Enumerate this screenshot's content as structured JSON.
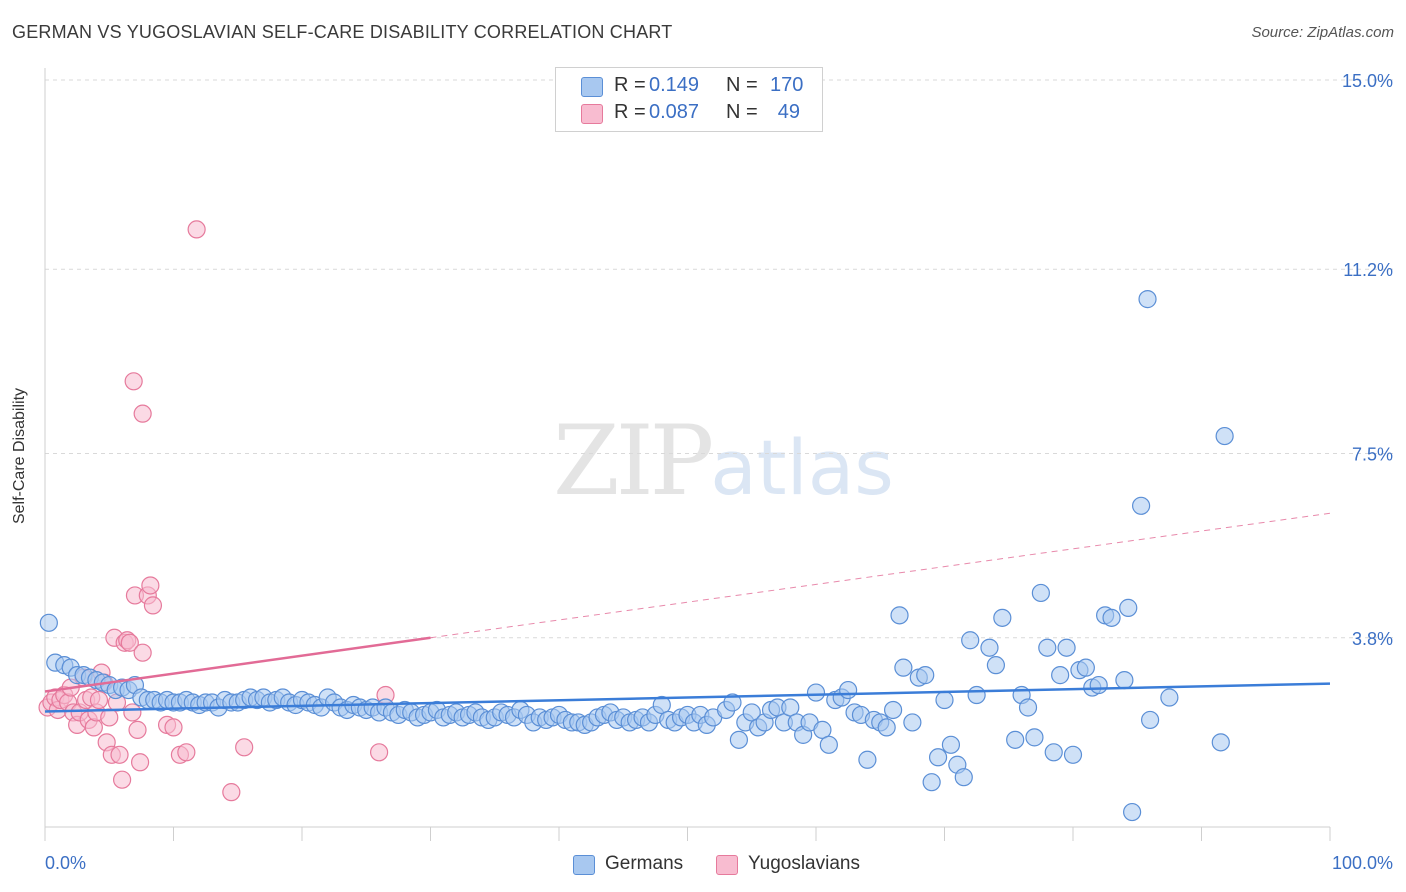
{
  "title": "GERMAN VS YUGOSLAVIAN SELF-CARE DISABILITY CORRELATION CHART",
  "source": "Source: ZipAtlas.com",
  "watermark": {
    "a": "ZIP",
    "b": "atlas"
  },
  "legend": {
    "rows": [
      {
        "r_label": "R =",
        "r_value": "0.149",
        "n_label": "N =",
        "n_value": "170",
        "color": "#a8c8f0",
        "edge": "#5b8fd6"
      },
      {
        "r_label": "R =",
        "r_value": "0.087",
        "n_label": "N =",
        "n_value": "49",
        "color": "#f8bcd0",
        "edge": "#e67a9c"
      }
    ]
  },
  "bottom_legend": [
    {
      "label": "Germans",
      "color": "#a8c8f0",
      "edge": "#5b8fd6"
    },
    {
      "label": "Yugoslavians",
      "color": "#f8bcd0",
      "edge": "#e67a9c"
    }
  ],
  "chart_data": {
    "type": "scatter",
    "title": "GERMAN VS YUGOSLAVIAN SELF-CARE DISABILITY CORRELATION CHART",
    "xlabel": "",
    "ylabel": "Self-Care Disability",
    "xlim": [
      0,
      100
    ],
    "ylim": [
      0,
      15
    ],
    "x_tick_labels": [
      "0.0%",
      "100.0%"
    ],
    "y_ticks": [
      3.8,
      7.5,
      11.2,
      15.0
    ],
    "y_tick_labels": [
      "3.8%",
      "7.5%",
      "11.2%",
      "15.0%"
    ],
    "grid": true,
    "legend_position": "top-center",
    "series": [
      {
        "name": "Germans",
        "color": "#5b8fd6",
        "fill": "#a8c8f0",
        "trend": {
          "x": [
            0,
            100
          ],
          "y": [
            2.32,
            2.88
          ],
          "style": "solid",
          "color": "#3b7dd8"
        },
        "points": [
          [
            0.3,
            4.1
          ],
          [
            0.8,
            3.3
          ],
          [
            1.5,
            3.25
          ],
          [
            2.0,
            3.2
          ],
          [
            2.5,
            3.05
          ],
          [
            3.0,
            3.05
          ],
          [
            3.5,
            3.0
          ],
          [
            4.0,
            2.95
          ],
          [
            4.5,
            2.9
          ],
          [
            5.0,
            2.85
          ],
          [
            5.5,
            2.75
          ],
          [
            6.0,
            2.8
          ],
          [
            6.5,
            2.75
          ],
          [
            7.0,
            2.85
          ],
          [
            7.5,
            2.6
          ],
          [
            8.0,
            2.55
          ],
          [
            8.5,
            2.55
          ],
          [
            9.0,
            2.5
          ],
          [
            9.5,
            2.55
          ],
          [
            10.0,
            2.5
          ],
          [
            10.5,
            2.5
          ],
          [
            11.0,
            2.55
          ],
          [
            11.5,
            2.5
          ],
          [
            12.0,
            2.45
          ],
          [
            12.5,
            2.5
          ],
          [
            13.0,
            2.5
          ],
          [
            13.5,
            2.4
          ],
          [
            14.0,
            2.55
          ],
          [
            14.5,
            2.5
          ],
          [
            15.0,
            2.5
          ],
          [
            15.5,
            2.55
          ],
          [
            16.0,
            2.6
          ],
          [
            16.5,
            2.55
          ],
          [
            17.0,
            2.6
          ],
          [
            17.5,
            2.5
          ],
          [
            18.0,
            2.55
          ],
          [
            18.5,
            2.6
          ],
          [
            19.0,
            2.5
          ],
          [
            19.5,
            2.45
          ],
          [
            20.0,
            2.55
          ],
          [
            20.5,
            2.5
          ],
          [
            21.0,
            2.45
          ],
          [
            21.5,
            2.4
          ],
          [
            22.0,
            2.6
          ],
          [
            22.5,
            2.5
          ],
          [
            23.0,
            2.4
          ],
          [
            23.5,
            2.35
          ],
          [
            24.0,
            2.45
          ],
          [
            24.5,
            2.4
          ],
          [
            25.0,
            2.35
          ],
          [
            25.5,
            2.4
          ],
          [
            26.0,
            2.3
          ],
          [
            26.5,
            2.4
          ],
          [
            27.0,
            2.3
          ],
          [
            27.5,
            2.25
          ],
          [
            28.0,
            2.35
          ],
          [
            28.5,
            2.3
          ],
          [
            29.0,
            2.2
          ],
          [
            29.5,
            2.25
          ],
          [
            30.0,
            2.3
          ],
          [
            30.5,
            2.35
          ],
          [
            31.0,
            2.2
          ],
          [
            31.5,
            2.25
          ],
          [
            32.0,
            2.3
          ],
          [
            32.5,
            2.2
          ],
          [
            33.0,
            2.25
          ],
          [
            33.5,
            2.3
          ],
          [
            34.0,
            2.2
          ],
          [
            34.5,
            2.15
          ],
          [
            35.0,
            2.2
          ],
          [
            35.5,
            2.3
          ],
          [
            36.0,
            2.25
          ],
          [
            36.5,
            2.2
          ],
          [
            37.0,
            2.35
          ],
          [
            37.5,
            2.25
          ],
          [
            38.0,
            2.1
          ],
          [
            38.5,
            2.2
          ],
          [
            39.0,
            2.15
          ],
          [
            39.5,
            2.2
          ],
          [
            40.0,
            2.25
          ],
          [
            40.5,
            2.15
          ],
          [
            41.0,
            2.1
          ],
          [
            41.5,
            2.1
          ],
          [
            42.0,
            2.05
          ],
          [
            42.5,
            2.1
          ],
          [
            43.0,
            2.2
          ],
          [
            43.5,
            2.25
          ],
          [
            44.0,
            2.3
          ],
          [
            44.5,
            2.15
          ],
          [
            45.0,
            2.2
          ],
          [
            45.5,
            2.1
          ],
          [
            46.0,
            2.15
          ],
          [
            46.5,
            2.2
          ],
          [
            47.0,
            2.1
          ],
          [
            47.5,
            2.25
          ],
          [
            48.0,
            2.45
          ],
          [
            48.5,
            2.15
          ],
          [
            49.0,
            2.1
          ],
          [
            49.5,
            2.2
          ],
          [
            50.0,
            2.25
          ],
          [
            50.5,
            2.1
          ],
          [
            51.0,
            2.25
          ],
          [
            51.5,
            2.05
          ],
          [
            52.0,
            2.2
          ],
          [
            53.0,
            2.35
          ],
          [
            53.5,
            2.5
          ],
          [
            54.0,
            1.75
          ],
          [
            54.5,
            2.1
          ],
          [
            55.0,
            2.3
          ],
          [
            55.5,
            2.0
          ],
          [
            56.0,
            2.1
          ],
          [
            56.5,
            2.35
          ],
          [
            57.0,
            2.4
          ],
          [
            57.5,
            2.1
          ],
          [
            58.0,
            2.4
          ],
          [
            58.5,
            2.1
          ],
          [
            59.0,
            1.85
          ],
          [
            59.5,
            2.1
          ],
          [
            60.0,
            2.7
          ],
          [
            60.5,
            1.95
          ],
          [
            61.0,
            1.65
          ],
          [
            61.5,
            2.55
          ],
          [
            62.0,
            2.6
          ],
          [
            62.5,
            2.75
          ],
          [
            63.0,
            2.3
          ],
          [
            63.5,
            2.25
          ],
          [
            64.0,
            1.35
          ],
          [
            64.5,
            2.15
          ],
          [
            65.0,
            2.1
          ],
          [
            65.5,
            2.0
          ],
          [
            66.0,
            2.35
          ],
          [
            66.5,
            4.25
          ],
          [
            66.8,
            3.2
          ],
          [
            67.5,
            2.1
          ],
          [
            68.0,
            3.0
          ],
          [
            68.5,
            3.05
          ],
          [
            69.0,
            0.9
          ],
          [
            69.5,
            1.4
          ],
          [
            70.0,
            2.55
          ],
          [
            70.5,
            1.65
          ],
          [
            71.0,
            1.25
          ],
          [
            71.5,
            1.0
          ],
          [
            72.0,
            3.75
          ],
          [
            72.5,
            2.65
          ],
          [
            73.5,
            3.6
          ],
          [
            74.0,
            3.25
          ],
          [
            74.5,
            4.2
          ],
          [
            75.5,
            1.75
          ],
          [
            76.0,
            2.65
          ],
          [
            76.5,
            2.4
          ],
          [
            77.0,
            1.8
          ],
          [
            77.5,
            4.7
          ],
          [
            78.0,
            3.6
          ],
          [
            78.5,
            1.5
          ],
          [
            79.0,
            3.05
          ],
          [
            79.5,
            3.6
          ],
          [
            80.0,
            1.45
          ],
          [
            80.5,
            3.15
          ],
          [
            81.0,
            3.2
          ],
          [
            81.5,
            2.8
          ],
          [
            82.0,
            2.85
          ],
          [
            82.5,
            4.25
          ],
          [
            83.0,
            4.2
          ],
          [
            84.0,
            2.95
          ],
          [
            84.3,
            4.4
          ],
          [
            84.6,
            0.3
          ],
          [
            86.0,
            2.15
          ],
          [
            87.5,
            2.6
          ],
          [
            91.5,
            1.7
          ],
          [
            85.8,
            10.6
          ],
          [
            91.8,
            7.85
          ],
          [
            85.3,
            6.45
          ]
        ]
      },
      {
        "name": "Yugoslavians",
        "color": "#e67a9c",
        "fill": "#f8bcd0",
        "trend": {
          "x": [
            0,
            30
          ],
          "y": [
            2.72,
            3.8
          ],
          "style": "solid",
          "color": "#e26b96",
          "extension": {
            "x": [
              30,
              100
            ],
            "y": [
              3.8,
              6.3
            ],
            "style": "dashed"
          }
        },
        "points": [
          [
            0.2,
            2.4
          ],
          [
            0.5,
            2.5
          ],
          [
            0.8,
            2.6
          ],
          [
            1.0,
            2.35
          ],
          [
            1.2,
            2.55
          ],
          [
            1.5,
            2.65
          ],
          [
            1.8,
            2.5
          ],
          [
            2.0,
            2.8
          ],
          [
            2.2,
            2.3
          ],
          [
            2.5,
            2.05
          ],
          [
            2.7,
            2.3
          ],
          [
            3.0,
            3.0
          ],
          [
            3.2,
            2.55
          ],
          [
            3.4,
            2.15
          ],
          [
            3.6,
            2.6
          ],
          [
            3.8,
            2.0
          ],
          [
            4.0,
            2.3
          ],
          [
            4.2,
            2.55
          ],
          [
            4.4,
            3.1
          ],
          [
            4.6,
            2.9
          ],
          [
            4.8,
            1.7
          ],
          [
            5.0,
            2.2
          ],
          [
            5.2,
            1.45
          ],
          [
            5.4,
            3.8
          ],
          [
            5.6,
            2.5
          ],
          [
            5.8,
            1.45
          ],
          [
            6.0,
            0.95
          ],
          [
            6.2,
            3.7
          ],
          [
            6.4,
            3.75
          ],
          [
            6.6,
            3.7
          ],
          [
            6.8,
            2.3
          ],
          [
            7.0,
            4.65
          ],
          [
            7.2,
            1.95
          ],
          [
            7.4,
            1.3
          ],
          [
            7.6,
            3.5
          ],
          [
            8.0,
            4.65
          ],
          [
            8.2,
            4.85
          ],
          [
            8.4,
            4.45
          ],
          [
            9.5,
            2.05
          ],
          [
            10.0,
            2.0
          ],
          [
            10.5,
            1.45
          ],
          [
            11.8,
            12.0
          ],
          [
            11.0,
            1.5
          ],
          [
            14.5,
            0.7
          ],
          [
            15.5,
            1.6
          ],
          [
            26.0,
            1.5
          ],
          [
            26.5,
            2.65
          ],
          [
            6.9,
            8.95
          ],
          [
            7.6,
            8.3
          ]
        ]
      }
    ]
  }
}
